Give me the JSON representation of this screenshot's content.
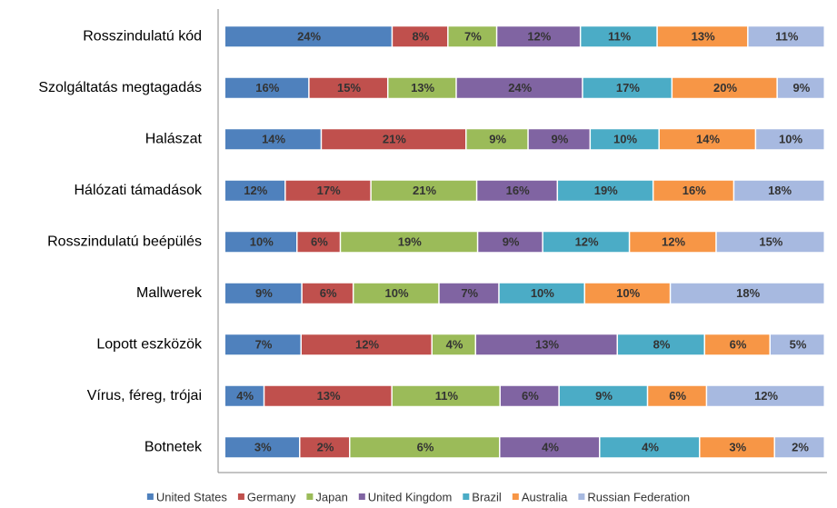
{
  "chart_data": {
    "type": "bar",
    "orientation": "horizontal",
    "stacking": "percent",
    "categories": [
      "Rosszindulatú kód",
      "Szolgáltatás megtagadás",
      "Halászat",
      "Hálózati támadások",
      "Rosszindulatú beépülés",
      "Mallwerek",
      "Lopott eszközök",
      "Vírus, féreg, trójai",
      "Botnetek"
    ],
    "series": [
      {
        "name": "United States",
        "color": "#4f81bd",
        "values": [
          24,
          16,
          14,
          12,
          10,
          9,
          7,
          4,
          3
        ],
        "value_labels": [
          "24%",
          "16%",
          "14%",
          "12%",
          "10%",
          "9%",
          "7%",
          "4%",
          "3%"
        ]
      },
      {
        "name": "Germany",
        "color": "#c0504d",
        "values": [
          8,
          15,
          21,
          17,
          6,
          6,
          12,
          13,
          2
        ],
        "value_labels": [
          "8%",
          "15%",
          "21%",
          "17%",
          "6%",
          "6%",
          "12%",
          "13%",
          "2%"
        ]
      },
      {
        "name": "Japan",
        "color": "#9bbb59",
        "values": [
          7,
          13,
          9,
          21,
          19,
          10,
          4,
          11,
          6
        ],
        "value_labels": [
          "7%",
          "13%",
          "9%",
          "21%",
          "19%",
          "10%",
          "4%",
          "11%",
          "6%"
        ]
      },
      {
        "name": "United Kingdom",
        "color": "#8064a2",
        "values": [
          12,
          24,
          9,
          16,
          9,
          7,
          13,
          6,
          4
        ],
        "value_labels": [
          "12%",
          "24%",
          "9%",
          "16%",
          "9%",
          "7%",
          "13%",
          "6%",
          "4%"
        ]
      },
      {
        "name": "Brazil",
        "color": "#4bacc6",
        "values": [
          11,
          17,
          10,
          19,
          12,
          10,
          8,
          9,
          4
        ],
        "value_labels": [
          "11%",
          "17%",
          "10%",
          "19%",
          "12%",
          "10%",
          "8%",
          "9%",
          "4%"
        ]
      },
      {
        "name": "Australia",
        "color": "#f79646",
        "values": [
          13,
          20,
          14,
          16,
          12,
          10,
          6,
          6,
          3
        ],
        "value_labels": [
          "13%",
          "20%",
          "14%",
          "16%",
          "12%",
          "10%",
          "6%",
          "6%",
          "3%"
        ]
      },
      {
        "name": "Russian Federation",
        "color": "#a7b9e0",
        "values": [
          11,
          9,
          10,
          18,
          15,
          18,
          5,
          12,
          2
        ],
        "value_labels": [
          "11%",
          "9%",
          "10%",
          "18%",
          "15%",
          "18%",
          "5%",
          "12%",
          "2%"
        ]
      }
    ],
    "legend": "bottom"
  }
}
